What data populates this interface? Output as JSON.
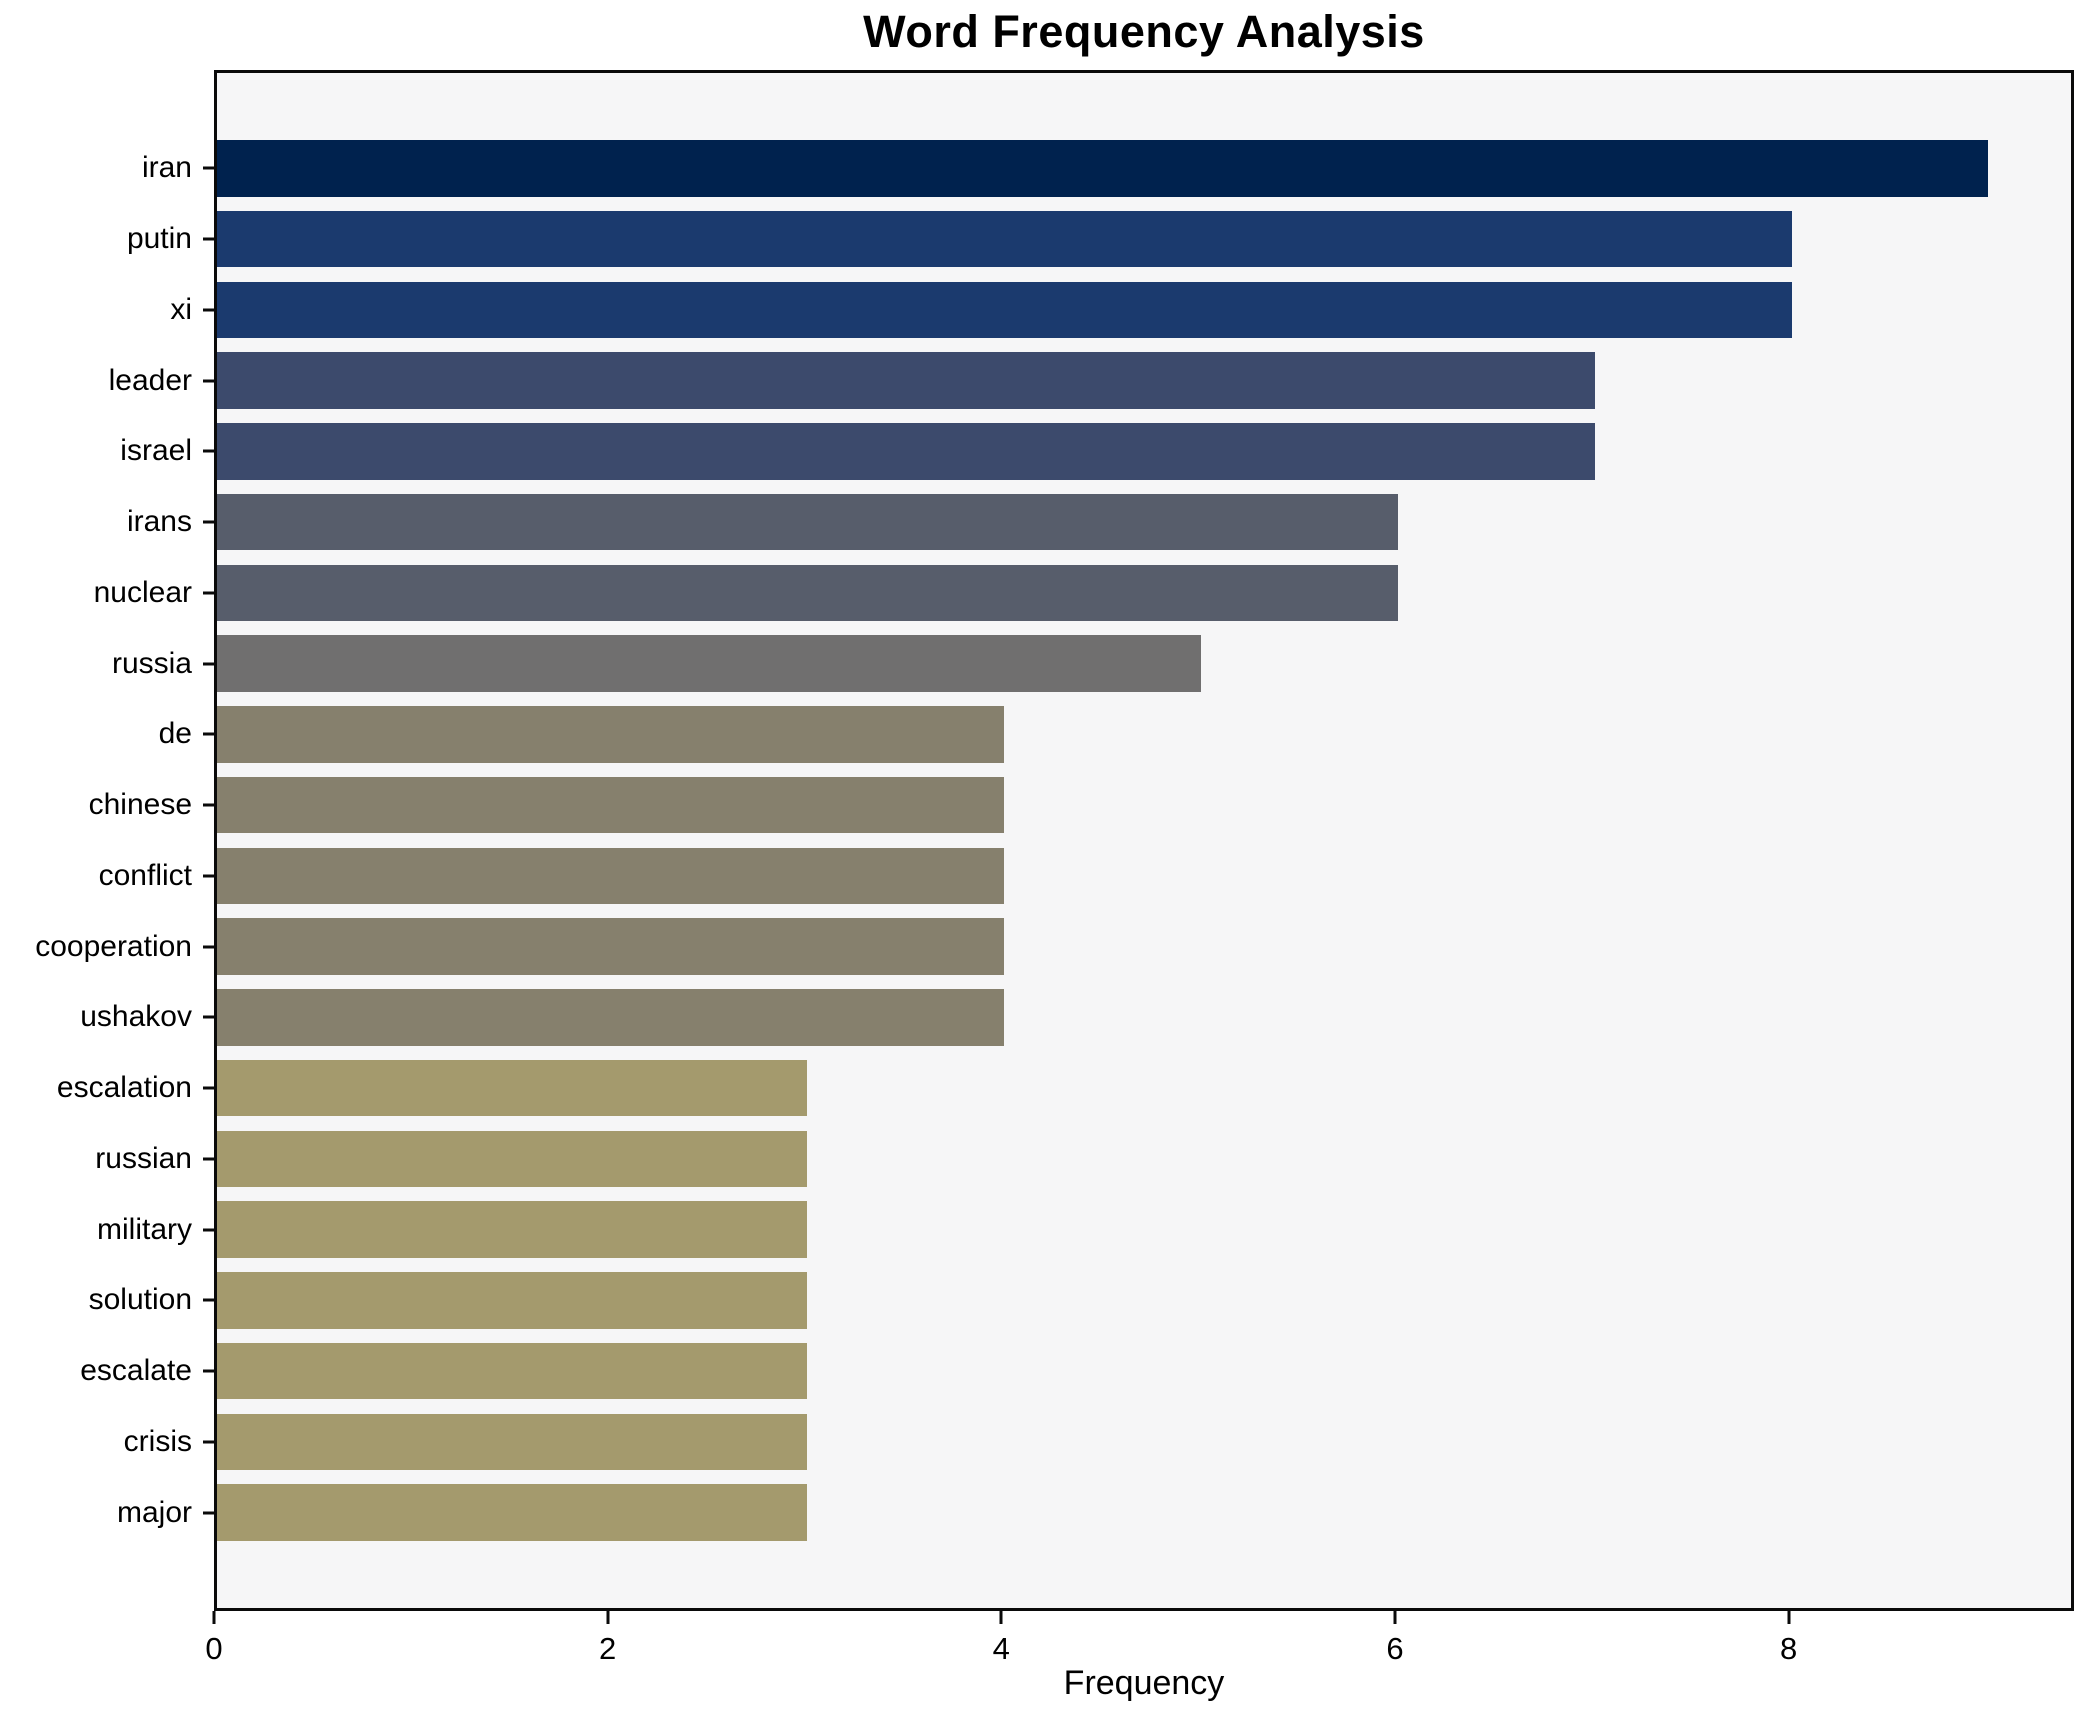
{
  "chart_data": {
    "type": "bar",
    "orientation": "horizontal",
    "title": "Word Frequency Analysis",
    "xlabel": "Frequency",
    "ylabel": "",
    "categories": [
      "iran",
      "putin",
      "xi",
      "leader",
      "israel",
      "irans",
      "nuclear",
      "russia",
      "de",
      "chinese",
      "conflict",
      "cooperation",
      "ushakov",
      "escalation",
      "russian",
      "military",
      "solution",
      "escalate",
      "crisis",
      "major"
    ],
    "values": [
      9,
      8,
      8,
      7,
      7,
      6,
      6,
      5,
      4,
      4,
      4,
      4,
      4,
      3,
      3,
      3,
      3,
      3,
      3,
      3
    ],
    "bar_colors": [
      "#00224e",
      "#1b3a6e",
      "#1b3a6e",
      "#3c4a6c",
      "#3c4a6c",
      "#575d6b",
      "#575d6b",
      "#706f6f",
      "#86806d",
      "#86806d",
      "#86806d",
      "#86806d",
      "#86806d",
      "#a49a6d",
      "#a49a6d",
      "#a49a6d",
      "#a49a6d",
      "#a49a6d",
      "#a49a6d",
      "#a49a6d"
    ],
    "colormap": "cividis",
    "xlim": [
      0,
      9.45
    ],
    "xticks": [
      0,
      2,
      4,
      6,
      8
    ],
    "grid": false,
    "legend": null,
    "plot_background": "#f6f6f7",
    "figure_background": "#ffffff",
    "spine_color": "#0a0a0a"
  }
}
